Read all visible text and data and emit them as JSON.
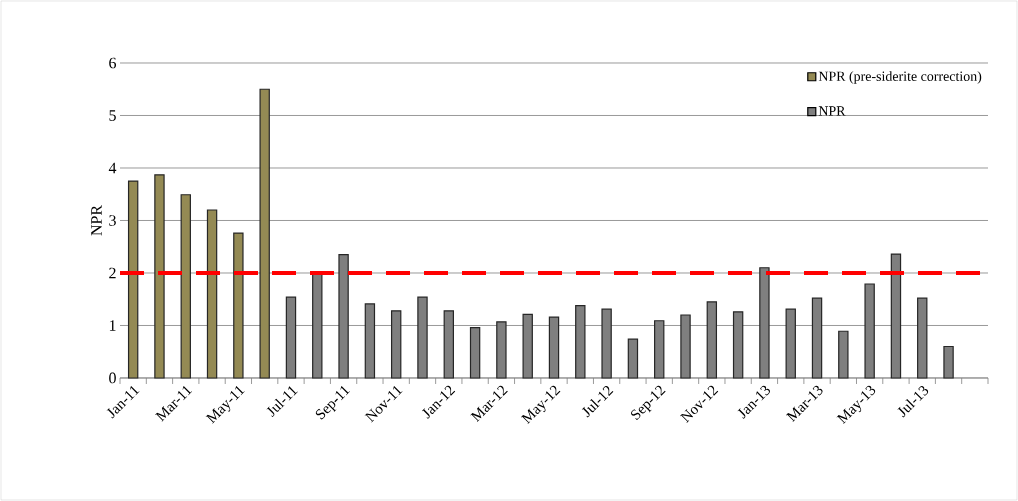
{
  "chart_data": {
    "type": "bar",
    "ylabel": "NPR",
    "categories": [
      "Jan-11",
      null,
      "Mar-11",
      null,
      "May-11",
      null,
      "Jul-11",
      null,
      "Sep-11",
      null,
      "Nov-11",
      null,
      "Jan-12",
      null,
      "Mar-12",
      null,
      "May-12",
      null,
      "Jul-12",
      null,
      "Sep-12",
      null,
      "Nov-12",
      null,
      "Jan-13",
      null,
      "Mar-13",
      null,
      "May-13",
      null,
      "Jul-13",
      null,
      null
    ],
    "series": [
      {
        "name": "NPR (pre-siderite correction)",
        "color": "#948a54",
        "values": [
          3.75,
          3.87,
          3.49,
          3.2,
          2.76,
          5.5,
          null,
          null,
          null,
          null,
          null,
          null,
          null,
          null,
          null,
          null,
          null,
          null,
          null,
          null,
          null,
          null,
          null,
          null,
          null,
          null,
          null,
          null,
          null,
          null,
          null,
          null,
          null
        ]
      },
      {
        "name": "NPR",
        "color": "#7f7f7f",
        "values": [
          null,
          null,
          null,
          null,
          null,
          null,
          1.54,
          2.02,
          2.35,
          1.41,
          1.28,
          1.54,
          1.28,
          0.96,
          1.07,
          1.21,
          1.16,
          1.38,
          1.31,
          0.74,
          1.09,
          1.2,
          1.45,
          1.26,
          2.1,
          1.31,
          1.52,
          0.89,
          1.79,
          2.36,
          1.52,
          0.6,
          null
        ]
      }
    ],
    "ylim": [
      0,
      6
    ],
    "yticks": [
      0,
      1,
      2,
      3,
      4,
      5,
      6
    ],
    "grid": "y",
    "legend": "top right",
    "ref_lines": [
      {
        "axis": "y",
        "value": 2,
        "color": "#ff0000",
        "line_style": "dashed"
      }
    ]
  }
}
